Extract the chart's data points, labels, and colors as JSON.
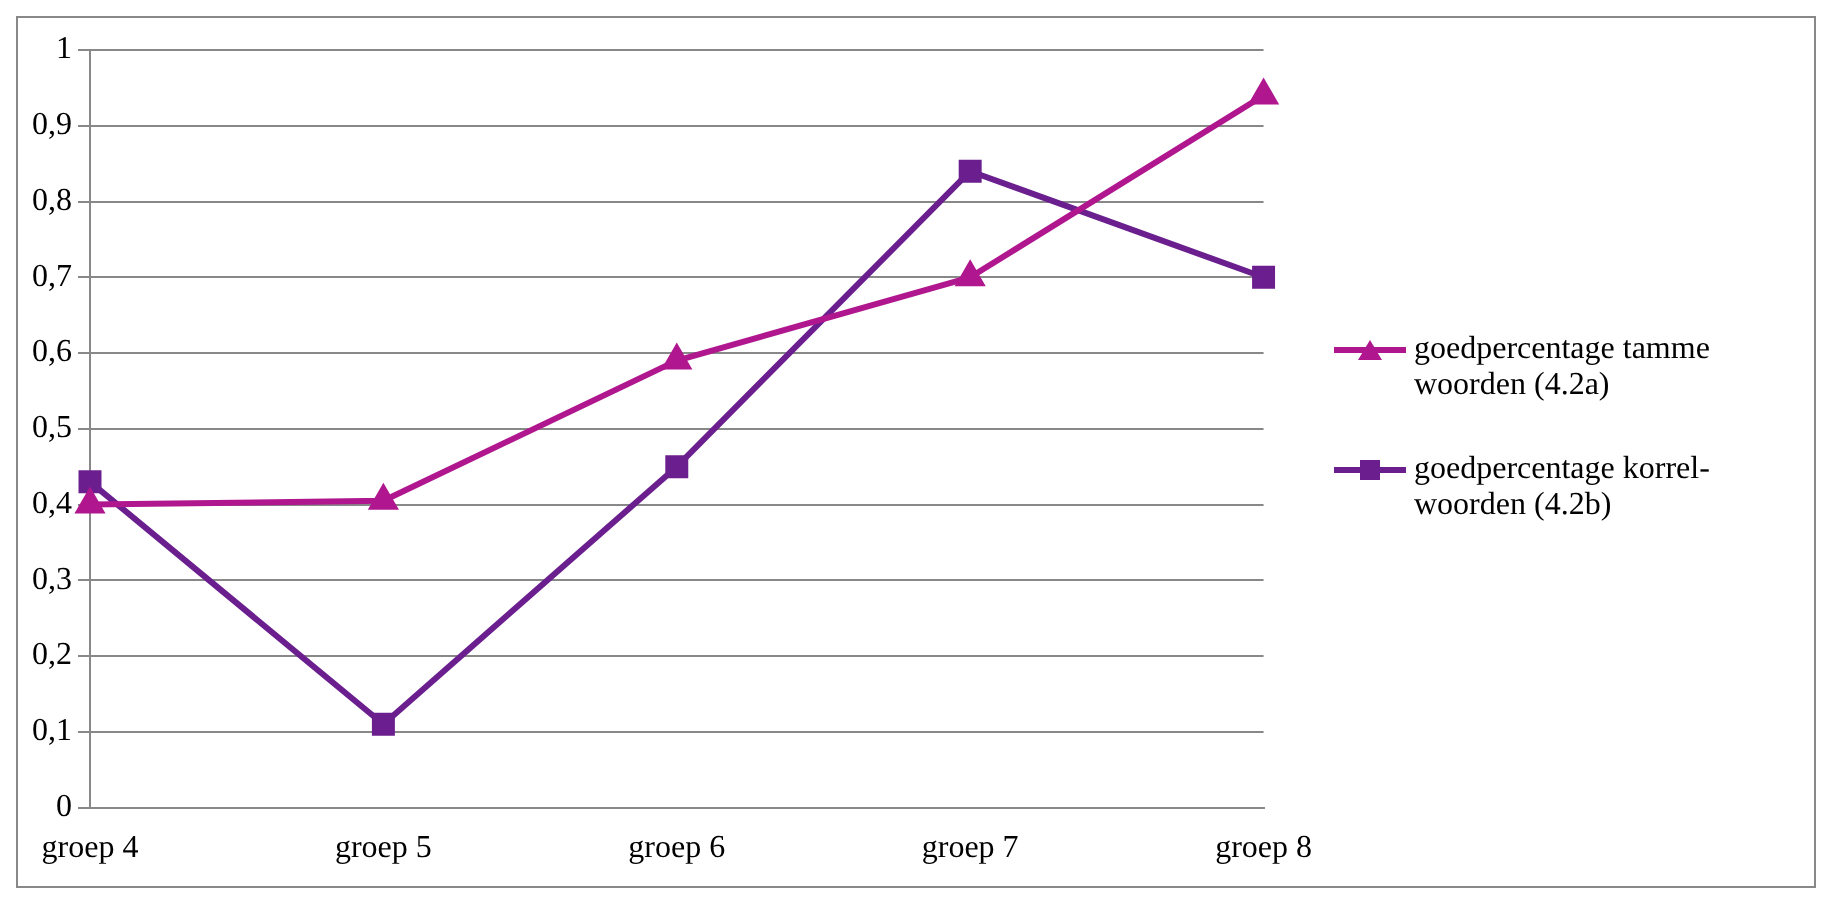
{
  "chart_data": {
    "type": "line",
    "categories": [
      "groep 4",
      "groep 5",
      "groep 6",
      "groep 7",
      "groep 8"
    ],
    "series": [
      {
        "name": "goedpercentage tamme woorden (4.2a)",
        "color": "#b0178f",
        "marker": "triangle",
        "values": [
          0.4,
          0.405,
          0.59,
          0.7,
          0.94
        ]
      },
      {
        "name": "goedpercentage korrel-woorden (4.2b)",
        "color": "#6b1f8f",
        "marker": "square",
        "values": [
          0.43,
          0.11,
          0.45,
          0.84,
          0.7
        ]
      }
    ],
    "ylim": [
      0,
      1
    ],
    "yticks": [
      0,
      {
        "value": 0.1,
        "label": "0,1"
      },
      {
        "value": 0.2,
        "label": "0,2"
      },
      {
        "value": 0.3,
        "label": "0,3"
      },
      {
        "value": 0.4,
        "label": "0,4"
      },
      {
        "value": 0.5,
        "label": "0,5"
      },
      {
        "value": 0.6,
        "label": "0,6"
      },
      {
        "value": 0.7,
        "label": "0,7"
      },
      {
        "value": 0.8,
        "label": "0,8"
      },
      {
        "value": 0.9,
        "label": "0,9"
      },
      1
    ],
    "grid": "y",
    "legend": "right",
    "line_style": "solid"
  }
}
